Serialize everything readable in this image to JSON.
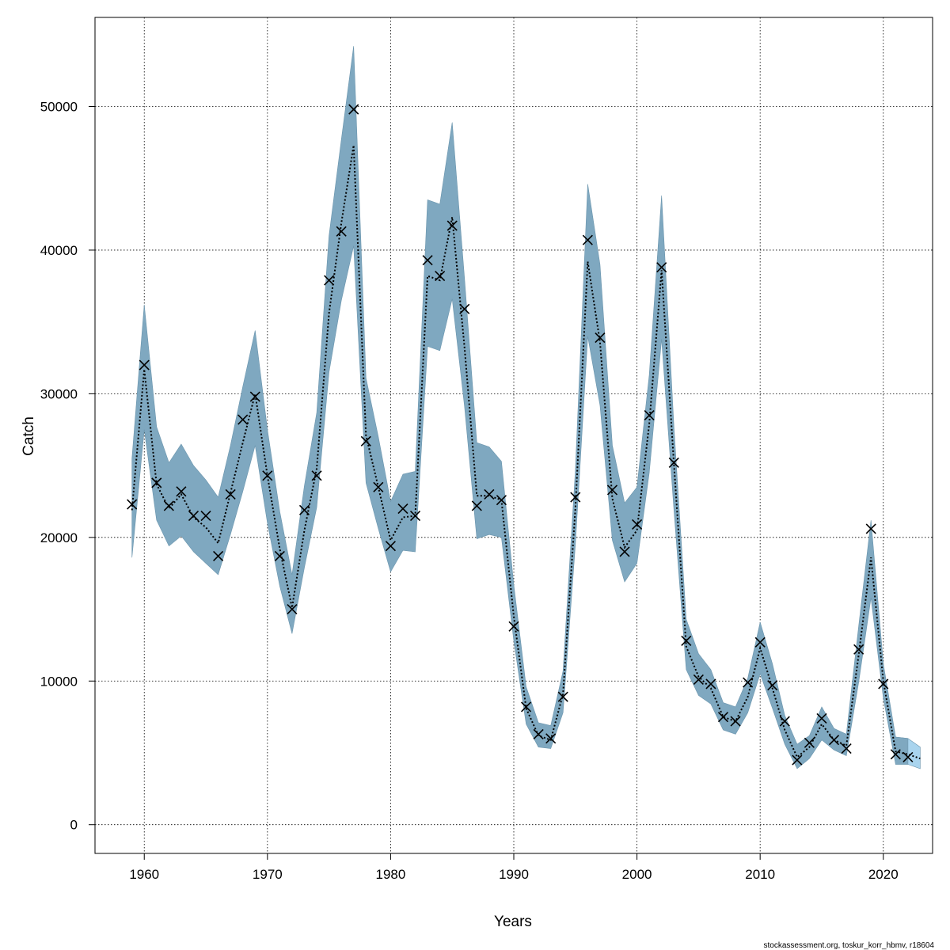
{
  "chart_data": {
    "type": "line",
    "xlabel": "Years",
    "ylabel": "Catch",
    "xlim": [
      1956,
      2024
    ],
    "ylim": [
      -2000,
      56200
    ],
    "x_ticks": [
      1960,
      1970,
      1980,
      1990,
      2000,
      2010,
      2020
    ],
    "y_ticks": [
      0,
      10000,
      20000,
      30000,
      40000,
      50000
    ],
    "grid": true,
    "credit": "stockassessment.org, toskur_korr_hbmv, r18604",
    "colors": {
      "band_fill": "#7fa8c0",
      "band_forecast_fill": "#a9d4ee",
      "band_edge": "#6b95ad",
      "estimate_line": "#000000",
      "observation_marker": "#000000",
      "grid": "#000000",
      "frame": "#000000"
    },
    "series": [
      {
        "kind": "confidence-band",
        "x": [
          1959,
          1960,
          1961,
          1962,
          1963,
          1964,
          1965,
          1966,
          1967,
          1968,
          1969,
          1970,
          1971,
          1972,
          1973,
          1974,
          1975,
          1976,
          1977,
          1978,
          1979,
          1980,
          1981,
          1982,
          1983,
          1984,
          1985,
          1986,
          1987,
          1988,
          1989,
          1990,
          1991,
          1992,
          1993,
          1994,
          1995,
          1996,
          1997,
          1998,
          1999,
          2000,
          2001,
          2002,
          2003,
          2004,
          2005,
          2006,
          2007,
          2008,
          2009,
          2010,
          2011,
          2012,
          2013,
          2014,
          2015,
          2016,
          2017,
          2018,
          2019,
          2020,
          2021,
          2022,
          2023
        ],
        "lower": [
          18600,
          27500,
          21200,
          19400,
          20100,
          19000,
          18200,
          17400,
          20200,
          23200,
          26400,
          21000,
          16600,
          13300,
          17900,
          22100,
          31500,
          36500,
          40300,
          23800,
          20600,
          17600,
          19100,
          19000,
          33300,
          33000,
          36600,
          29100,
          19900,
          20200,
          20000,
          12800,
          7000,
          5400,
          5300,
          7800,
          19500,
          34000,
          29200,
          19800,
          16900,
          18200,
          24500,
          33800,
          21900,
          10800,
          9000,
          8400,
          6600,
          6300,
          7800,
          10500,
          8100,
          5600,
          3900,
          4600,
          5900,
          5200,
          4800,
          9900,
          15800,
          8800,
          4200,
          4200,
          3900
        ],
        "upper": [
          25500,
          36200,
          27700,
          25200,
          26500,
          25000,
          24000,
          22800,
          26400,
          30500,
          34400,
          27500,
          21800,
          17400,
          23600,
          28700,
          41000,
          47700,
          54200,
          31100,
          27000,
          22500,
          24400,
          24600,
          43500,
          43200,
          48900,
          38000,
          26600,
          26300,
          25300,
          16700,
          9600,
          7100,
          6900,
          10700,
          24700,
          44600,
          39000,
          26400,
          22400,
          23500,
          31300,
          43800,
          27700,
          14300,
          11900,
          10800,
          8500,
          8200,
          10200,
          14100,
          11200,
          7600,
          5600,
          6200,
          8200,
          6700,
          6300,
          13800,
          21200,
          11200,
          6100,
          6000,
          5400
        ]
      },
      {
        "kind": "estimate",
        "style": "dotted",
        "x": [
          1959,
          1960,
          1961,
          1962,
          1963,
          1964,
          1965,
          1966,
          1967,
          1968,
          1969,
          1970,
          1971,
          1972,
          1973,
          1974,
          1975,
          1976,
          1977,
          1978,
          1979,
          1980,
          1981,
          1982,
          1983,
          1984,
          1985,
          1986,
          1987,
          1988,
          1989,
          1990,
          1991,
          1992,
          1993,
          1994,
          1995,
          1996,
          1997,
          1998,
          1999,
          2000,
          2001,
          2002,
          2003,
          2004,
          2005,
          2006,
          2007,
          2008,
          2009,
          2010,
          2011,
          2012,
          2013,
          2014,
          2015,
          2016,
          2017,
          2018,
          2019,
          2020,
          2021,
          2022,
          2023
        ],
        "values": [
          21900,
          31700,
          23700,
          22000,
          23000,
          21400,
          20700,
          19600,
          23100,
          26600,
          30000,
          24300,
          19200,
          15100,
          20500,
          24800,
          35600,
          41900,
          47300,
          27100,
          23500,
          19800,
          21400,
          21500,
          38200,
          37900,
          42300,
          33200,
          22900,
          22900,
          22600,
          14500,
          8100,
          6200,
          5900,
          9100,
          22000,
          39200,
          33600,
          22700,
          19300,
          20500,
          27900,
          38600,
          25100,
          12400,
          10300,
          9500,
          7500,
          7200,
          8900,
          12300,
          9500,
          6600,
          4700,
          5400,
          7000,
          5900,
          5500,
          11800,
          18600,
          10000,
          5100,
          4900,
          4600
        ]
      },
      {
        "kind": "observed",
        "marker": "x",
        "x": [
          1959,
          1960,
          1961,
          1962,
          1963,
          1964,
          1965,
          1966,
          1967,
          1968,
          1969,
          1970,
          1971,
          1972,
          1973,
          1974,
          1975,
          1976,
          1977,
          1978,
          1979,
          1980,
          1981,
          1982,
          1983,
          1984,
          1985,
          1986,
          1987,
          1988,
          1989,
          1990,
          1991,
          1992,
          1993,
          1994,
          1995,
          1996,
          1997,
          1998,
          1999,
          2000,
          2001,
          2002,
          2003,
          2004,
          2005,
          2006,
          2007,
          2008,
          2009,
          2010,
          2011,
          2012,
          2013,
          2014,
          2015,
          2016,
          2017,
          2018,
          2019,
          2020,
          2021,
          2022
        ],
        "values": [
          22300,
          32000,
          23800,
          22200,
          23200,
          21500,
          21500,
          18700,
          23000,
          28200,
          29800,
          24300,
          18700,
          15000,
          21900,
          24300,
          37900,
          41300,
          49800,
          26700,
          23500,
          19400,
          22000,
          21500,
          39300,
          38200,
          41700,
          35900,
          22200,
          23000,
          22600,
          13800,
          8200,
          6300,
          6000,
          8900,
          22800,
          40700,
          33900,
          23300,
          19000,
          20900,
          28500,
          38800,
          25200,
          12800,
          10100,
          9800,
          7500,
          7200,
          9900,
          12700,
          9700,
          7200,
          4500,
          5700,
          7400,
          5900,
          5300,
          12200,
          20600,
          9800,
          4900,
          4700
        ]
      }
    ]
  }
}
